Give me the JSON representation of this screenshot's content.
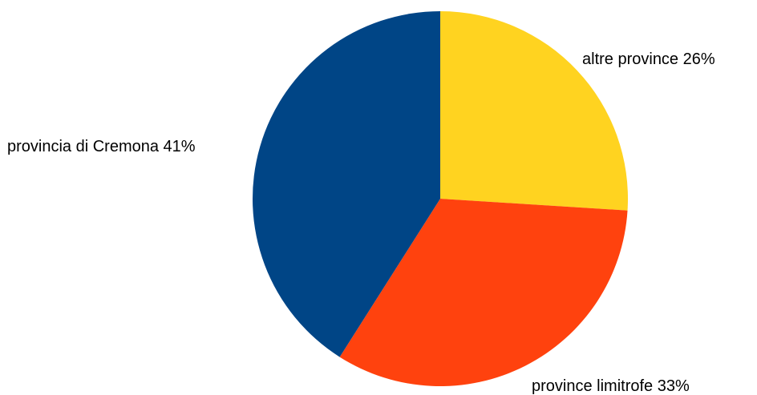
{
  "chart_data": {
    "type": "pie",
    "slices": [
      {
        "label": "altre province 26%",
        "value": 26,
        "color": "#ffd320"
      },
      {
        "label": "province limitrofe 33%",
        "value": 33,
        "color": "#ff420e"
      },
      {
        "label": "provincia di Cremona 41%",
        "value": 41,
        "color": "#004586"
      }
    ],
    "start_angle": "12 o'clock",
    "direction": "clockwise",
    "legend": "none"
  }
}
